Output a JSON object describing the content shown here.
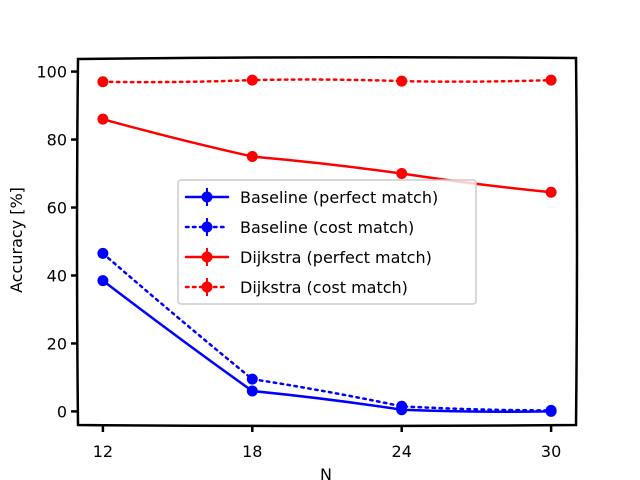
{
  "chart_data": {
    "type": "line",
    "title": "",
    "xlabel": "N",
    "ylabel": "Accuracy [%]",
    "x": [
      12,
      18,
      24,
      30
    ],
    "x_tick_labels": [
      "12",
      "18",
      "24",
      "30"
    ],
    "y_tick_labels": [
      "0",
      "20",
      "40",
      "60",
      "80",
      "100"
    ],
    "y_ticks": [
      0,
      20,
      40,
      60,
      80,
      100
    ],
    "xlim": [
      11,
      31
    ],
    "ylim": [
      -4,
      104
    ],
    "grid": false,
    "legend_placement": "center-left",
    "series": [
      {
        "name": "Baseline (perfect match)",
        "color": "#0000ff",
        "linestyle": "solid",
        "values": [
          38.5,
          6.0,
          0.5,
          0.0
        ],
        "errors": [
          1.5,
          1.0,
          0.5,
          0.5
        ]
      },
      {
        "name": "Baseline (cost match)",
        "color": "#0000ff",
        "linestyle": "dotted",
        "values": [
          46.5,
          9.5,
          1.5,
          0.3
        ],
        "errors": [
          1.5,
          1.0,
          0.5,
          0.5
        ]
      },
      {
        "name": "Dijkstra (perfect match)",
        "color": "#ff0000",
        "linestyle": "solid",
        "values": [
          86.0,
          75.0,
          70.0,
          64.5
        ],
        "errors": [
          0.5,
          0.5,
          0.5,
          0.5
        ]
      },
      {
        "name": "Dijkstra (cost match)",
        "color": "#ff0000",
        "linestyle": "dotted",
        "values": [
          97.0,
          97.5,
          97.2,
          97.5
        ],
        "errors": [
          0.3,
          0.3,
          0.3,
          0.3
        ]
      }
    ]
  }
}
